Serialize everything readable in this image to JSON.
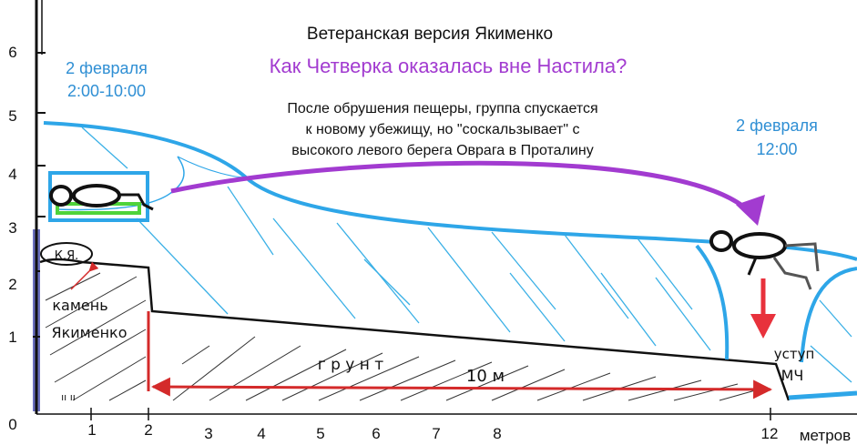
{
  "title": "Ветеранская версия Якименко",
  "question": "Как Четверка оказалась вне Настила?",
  "time_left": {
    "date": "2 февраля",
    "hours": "2:00-10:00"
  },
  "time_right": {
    "date": "2 февраля",
    "hours": "12:00"
  },
  "description": [
    "После обрушения пещеры, группа спускается",
    "к новому убежищу, но \"соскальзывает\" с",
    "высокого левого берега Оврага в Проталину"
  ],
  "labels": {
    "stone_abbr": "К.Я.",
    "stone_line1": "камень",
    "stone_line2": "Якименко",
    "ground": "г р у н т",
    "distance": "10 м",
    "ledge_line1": "уступ",
    "ledge_line2": "МЧ",
    "bottom_fragment": "ıı ıı"
  },
  "axes": {
    "y_ticks": [
      "0",
      "1",
      "2",
      "3",
      "4",
      "5",
      "6"
    ],
    "x_ticks": [
      "1",
      "2",
      "3",
      "4",
      "5",
      "6",
      "7",
      "8",
      "12"
    ],
    "x_unit": "метров"
  },
  "colors": {
    "snow_blue": "#2ea6e8",
    "hatch_blue": "#3ab0e6",
    "arrow_purple": "#a23bd0",
    "arrow_red": "#e8323c",
    "mat_green": "#4fd33a",
    "text_blue": "#2f8fd4"
  }
}
